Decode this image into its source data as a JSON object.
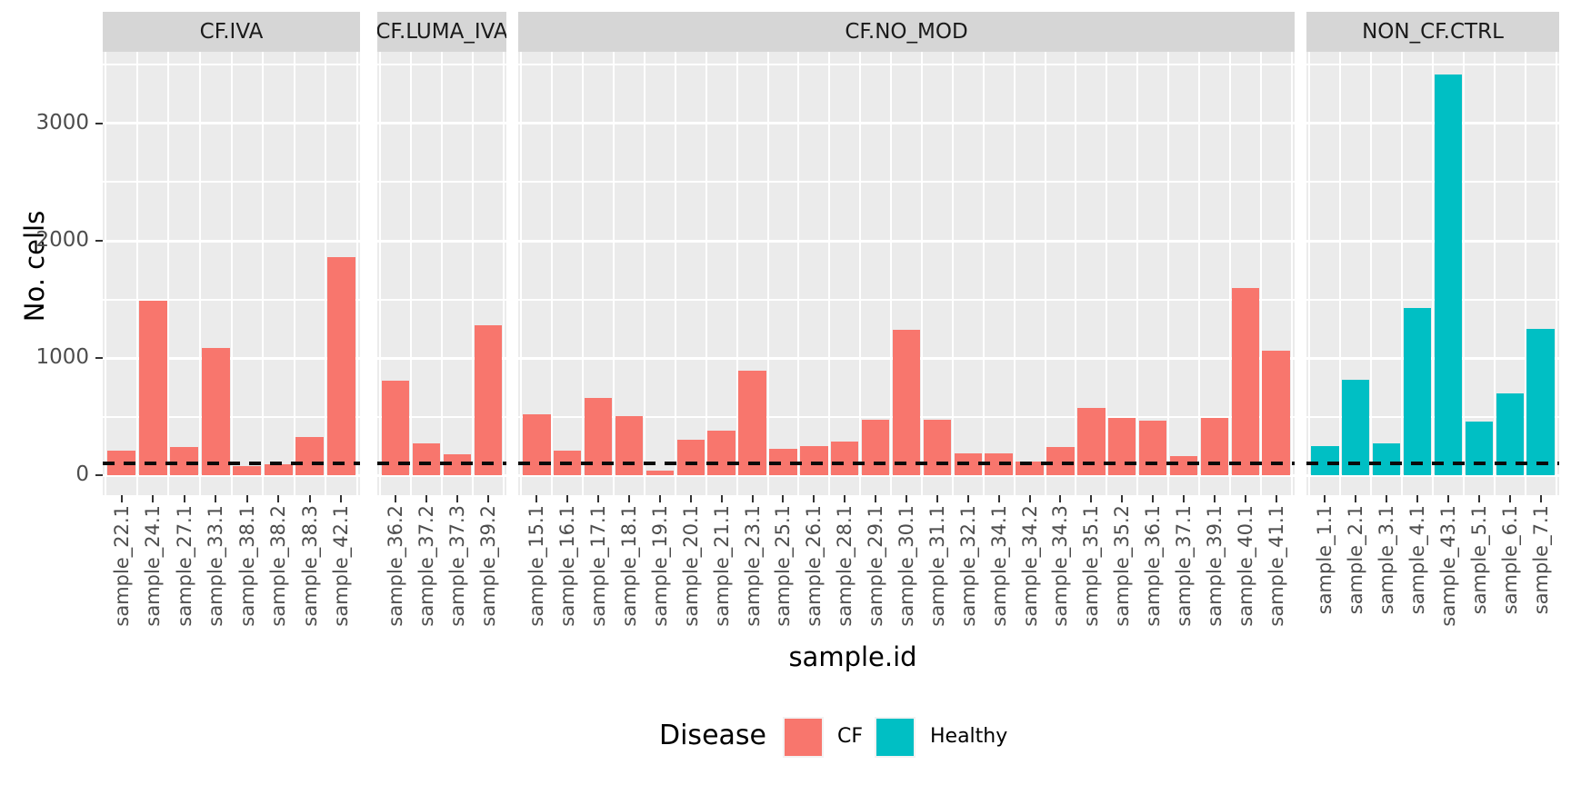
{
  "chart_data": {
    "type": "bar",
    "title": "",
    "xlabel": "sample.id",
    "ylabel": "No. cells",
    "ylim": [
      0,
      3600
    ],
    "y_ticks": [
      0,
      1000,
      2000,
      3000
    ],
    "y_minor_ticks": [
      500,
      1500,
      2500,
      3500
    ],
    "grid": "on",
    "threshold_line": {
      "value": 100,
      "style": "dashed",
      "color": "#0a0a0a"
    },
    "legend": {
      "title": "Disease",
      "position": "bottom",
      "entries": [
        {
          "label": "CF",
          "color": "#F8766D"
        },
        {
          "label": "Healthy",
          "color": "#00BFC4"
        }
      ]
    },
    "facets": [
      {
        "label": "CF.IVA",
        "group": "CF",
        "categories": [
          "sample_22.1",
          "sample_24.1",
          "sample_27.1",
          "sample_33.1",
          "sample_38.1",
          "sample_38.2",
          "sample_38.3",
          "sample_42.1"
        ],
        "values": [
          210,
          1490,
          240,
          1085,
          75,
          95,
          325,
          1860
        ]
      },
      {
        "label": "CF.LUMA_IVA",
        "group": "CF",
        "categories": [
          "sample_36.2",
          "sample_37.2",
          "sample_37.3",
          "sample_39.2"
        ],
        "values": [
          805,
          270,
          180,
          1280
        ]
      },
      {
        "label": "CF.NO_MOD",
        "group": "CF",
        "categories": [
          "sample_15.1",
          "sample_16.1",
          "sample_17.1",
          "sample_18.1",
          "sample_19.1",
          "sample_20.1",
          "sample_21.1",
          "sample_23.1",
          "sample_25.1",
          "sample_26.1",
          "sample_28.1",
          "sample_29.1",
          "sample_30.1",
          "sample_31.1",
          "sample_32.1",
          "sample_34.1",
          "sample_34.2",
          "sample_34.3",
          "sample_35.1",
          "sample_35.2",
          "sample_36.1",
          "sample_37.1",
          "sample_39.1",
          "sample_40.1",
          "sample_41.1"
        ],
        "values": [
          520,
          210,
          660,
          505,
          40,
          300,
          380,
          890,
          225,
          250,
          290,
          470,
          1240,
          470,
          190,
          190,
          115,
          240,
          575,
          490,
          465,
          165,
          490,
          1600,
          1060
        ]
      },
      {
        "label": "NON_CF.CTRL",
        "group": "Healthy",
        "categories": [
          "sample_1.1",
          "sample_2.1",
          "sample_3.1",
          "sample_4.1",
          "sample_43.1",
          "sample_5.1",
          "sample_6.1",
          "sample_7.1"
        ],
        "values": [
          250,
          815,
          270,
          1430,
          3420,
          460,
          700,
          1250
        ]
      }
    ],
    "colors": {
      "CF": "#F8766D",
      "Healthy": "#00BFC4",
      "panel_background": "#ebebeb",
      "strip_background": "#d6d6d6",
      "gridline": "#ffffff",
      "axis_text": "#4d4d4d"
    }
  }
}
